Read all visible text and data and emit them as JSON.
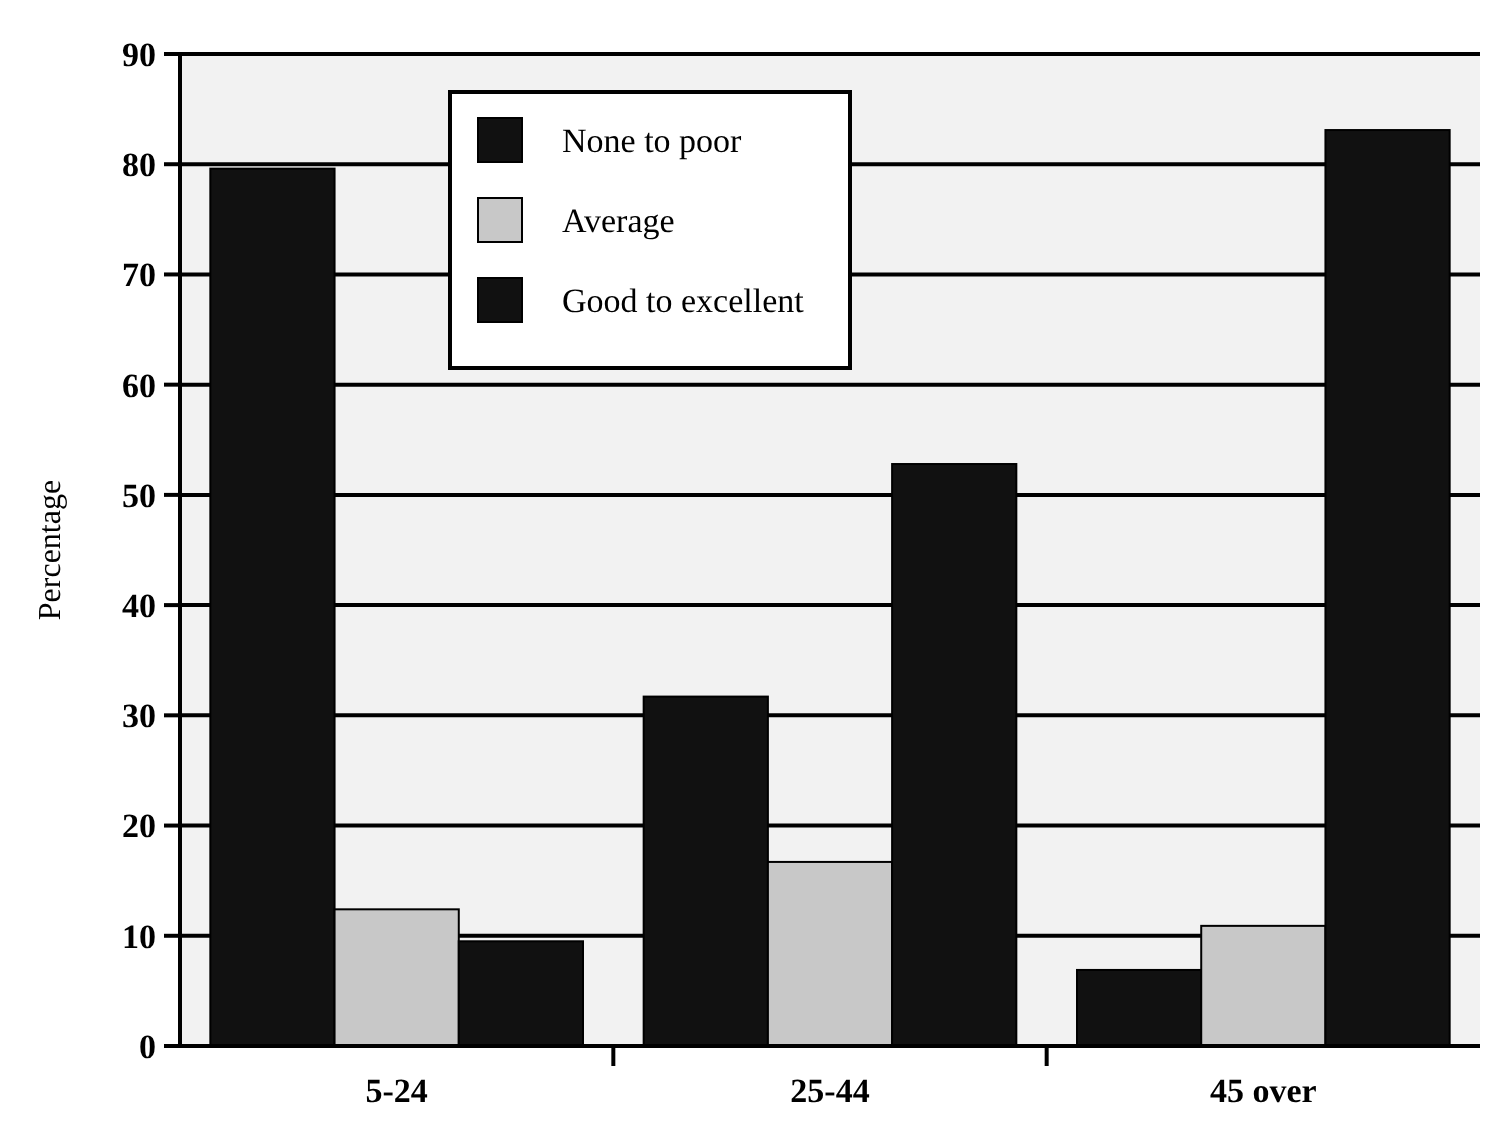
{
  "chart_data": {
    "type": "bar",
    "ylabel": "Percentage",
    "categories": [
      "5-24",
      "25-44",
      "45 over"
    ],
    "series": [
      {
        "name": "None to poor",
        "color": "#111111",
        "values": [
          79.6,
          31.7,
          6.9
        ]
      },
      {
        "name": "Average",
        "color": "#c8c8c8",
        "values": [
          12.4,
          16.7,
          10.9
        ]
      },
      {
        "name": "Good to excellent",
        "color": "#111111",
        "values": [
          9.5,
          52.8,
          83.1
        ]
      }
    ],
    "ylim": [
      0,
      90
    ],
    "yticks": [
      0,
      10,
      20,
      30,
      40,
      50,
      60,
      70,
      80,
      90
    ],
    "grid": "y",
    "legend": "top"
  }
}
